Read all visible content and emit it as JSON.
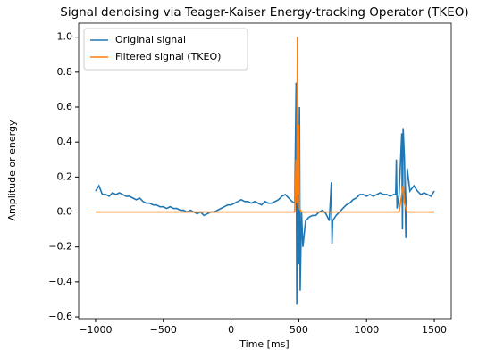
{
  "chart_data": {
    "type": "line",
    "title": "Signal denoising via Teager-Kaiser Energy-tracking Operator (TKEO)",
    "xlabel": "Time [ms]",
    "ylabel": "Amplitude or energy",
    "xlim": [
      -1125,
      1625
    ],
    "ylim": [
      -0.61,
      1.08
    ],
    "xticks": [
      {
        "value": -1000,
        "label": "−1000"
      },
      {
        "value": -500,
        "label": "−500"
      },
      0,
      500,
      1000,
      1500
    ],
    "yticks": [
      {
        "value": -0.6,
        "label": "−0.6"
      },
      {
        "value": -0.4,
        "label": "−0.4"
      },
      {
        "value": -0.2,
        "label": "−0.2"
      },
      {
        "value": 0,
        "label": "0.0"
      },
      0.2,
      0.4,
      0.6,
      0.8,
      {
        "value": 1,
        "label": "1.0"
      }
    ],
    "legend": "upper left",
    "series": [
      {
        "name": "Original signal",
        "color": "#1f77b4",
        "x": [
          -1000,
          -975,
          -950,
          -925,
          -900,
          -875,
          -850,
          -825,
          -800,
          -775,
          -750,
          -725,
          -700,
          -675,
          -650,
          -625,
          -600,
          -575,
          -550,
          -525,
          -500,
          -475,
          -450,
          -425,
          -400,
          -375,
          -350,
          -325,
          -300,
          -275,
          -250,
          -225,
          -200,
          -175,
          -150,
          -125,
          -100,
          -75,
          -50,
          -25,
          0,
          25,
          50,
          75,
          100,
          125,
          150,
          175,
          200,
          225,
          250,
          275,
          300,
          325,
          350,
          375,
          400,
          425,
          450,
          470,
          480,
          485,
          490,
          495,
          500,
          505,
          510,
          520,
          530,
          550,
          575,
          600,
          625,
          650,
          675,
          700,
          725,
          740,
          745,
          750,
          775,
          800,
          825,
          850,
          875,
          900,
          925,
          950,
          975,
          1000,
          1025,
          1050,
          1075,
          1100,
          1125,
          1150,
          1175,
          1200,
          1215,
          1220,
          1225,
          1240,
          1260,
          1265,
          1270,
          1280,
          1290,
          1300,
          1320,
          1350,
          1375,
          1400,
          1425,
          1450,
          1475,
          1500
        ],
        "values": [
          0.12,
          0.15,
          0.1,
          0.1,
          0.09,
          0.11,
          0.1,
          0.11,
          0.1,
          0.09,
          0.09,
          0.08,
          0.07,
          0.08,
          0.06,
          0.05,
          0.05,
          0.04,
          0.04,
          0.03,
          0.03,
          0.02,
          0.03,
          0.02,
          0.02,
          0.01,
          0.01,
          0,
          0.01,
          0,
          -0.01,
          0,
          -0.02,
          -0.01,
          0,
          0,
          0.01,
          0.02,
          0.03,
          0.04,
          0.04,
          0.05,
          0.06,
          0.07,
          0.06,
          0.06,
          0.05,
          0.06,
          0.05,
          0.04,
          0.06,
          0.05,
          0.05,
          0.06,
          0.07,
          0.09,
          0.1,
          0.08,
          0.06,
          0.05,
          0.74,
          -0.53,
          1.0,
          0.2,
          -0.3,
          0.6,
          -0.45,
          0,
          -0.2,
          -0.05,
          -0.03,
          -0.02,
          -0.02,
          0,
          0.01,
          -0.01,
          -0.05,
          0.17,
          -0.18,
          -0.05,
          -0.02,
          0,
          0.02,
          0.04,
          0.05,
          0.07,
          0.08,
          0.1,
          0.1,
          0.09,
          0.1,
          0.09,
          0.1,
          0.11,
          0.1,
          0.1,
          0.09,
          0.1,
          0.1,
          0.3,
          0.02,
          0.1,
          0.45,
          -0.1,
          0.48,
          0.3,
          -0.15,
          0.25,
          0.12,
          0.15,
          0.12,
          0.1,
          0.11,
          0.1,
          0.09,
          0.12
        ]
      },
      {
        "name": "Filtered signal (TKEO)",
        "color": "#ff7f0e",
        "x": [
          -1000,
          470,
          480,
          485,
          490,
          495,
          500,
          505,
          520,
          1240,
          1260,
          1270,
          1280,
          1300,
          1500
        ],
        "values": [
          0,
          0,
          0.3,
          0.05,
          1.0,
          0.1,
          0.5,
          0.02,
          0,
          0,
          0.1,
          0.15,
          0.05,
          0,
          0
        ]
      }
    ]
  }
}
